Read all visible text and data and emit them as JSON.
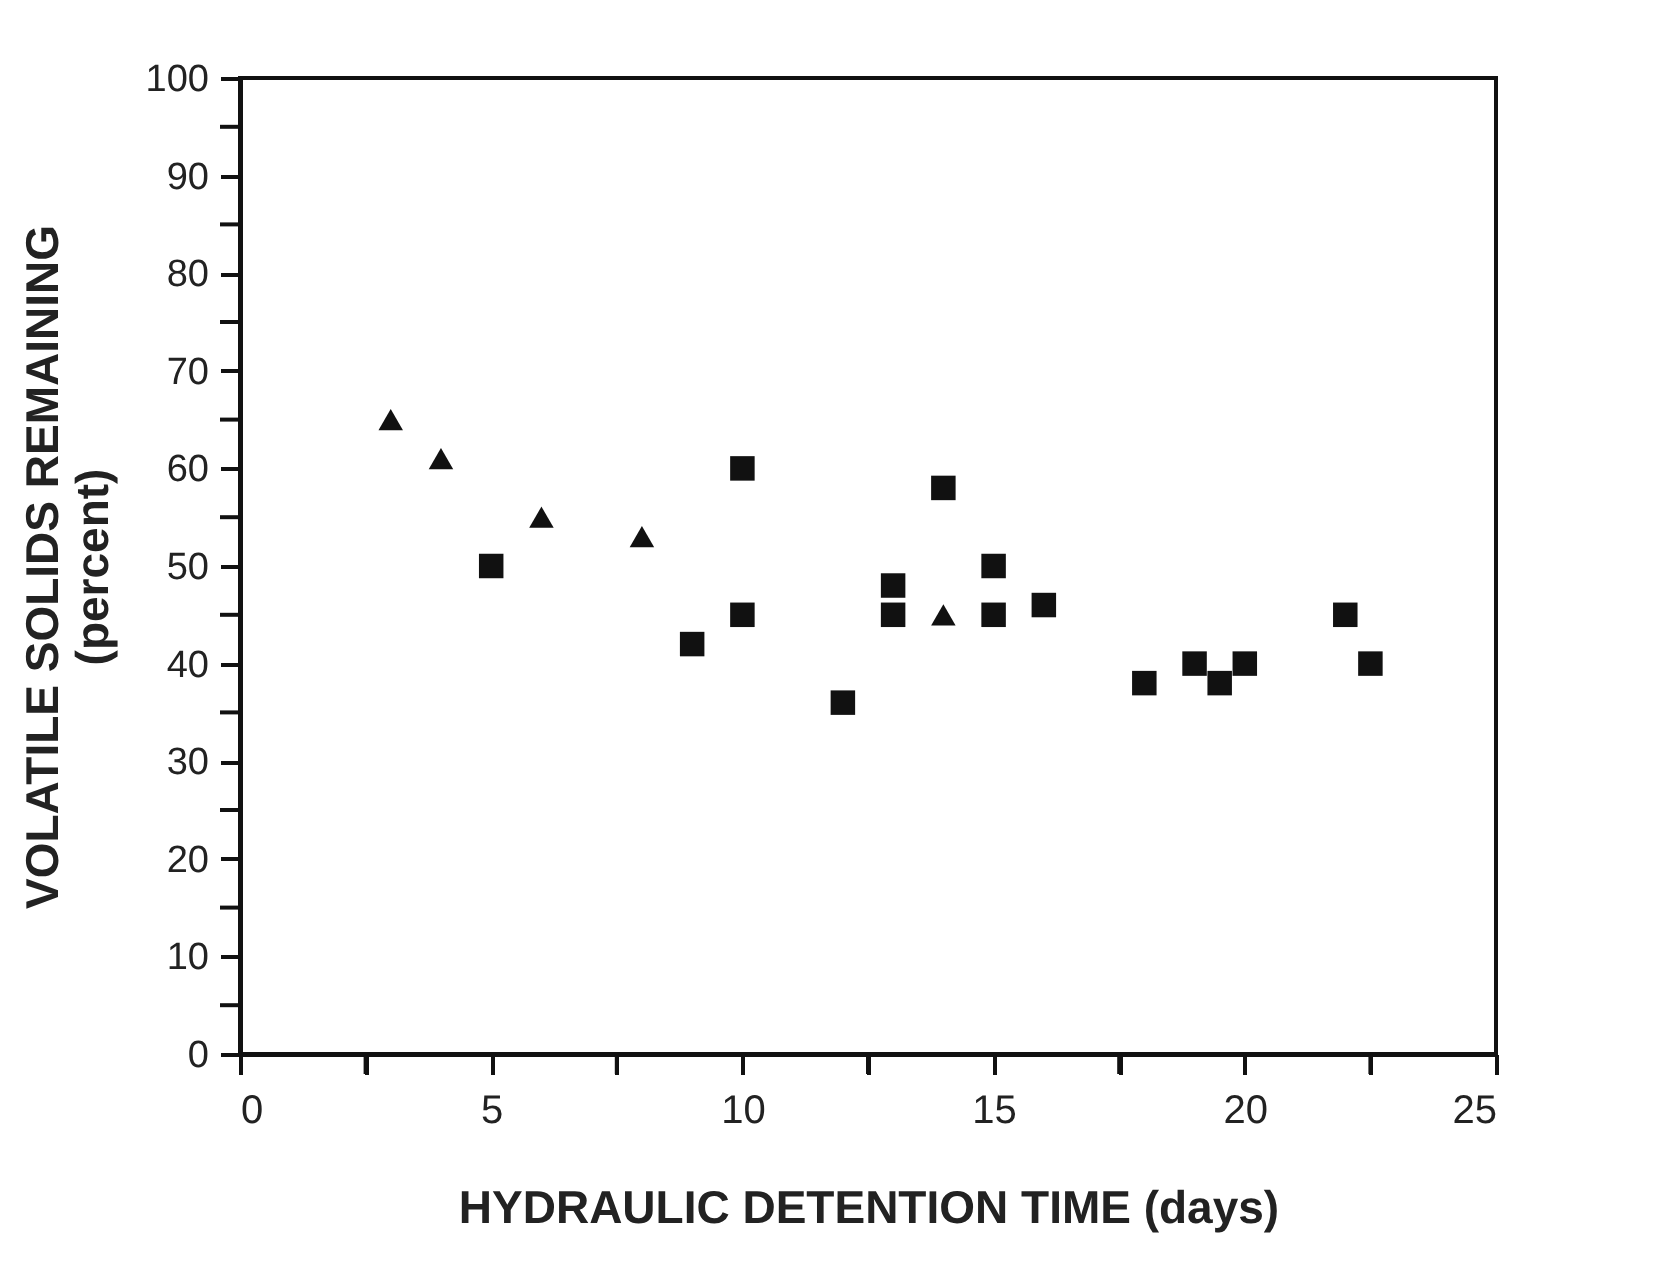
{
  "chart_data": {
    "type": "scatter",
    "xlabel": "HYDRAULIC DETENTION TIME (days)",
    "ylabel": "VOLATILE SOLIDS REMAINING\n(percent)",
    "series": [
      {
        "color": "#111111",
        "marker": "triangle",
        "x": [
          3,
          4,
          6,
          8,
          14
        ],
        "values": [
          65,
          61,
          55,
          53,
          45
        ]
      },
      {
        "color": "#111111",
        "marker": "square",
        "x": [
          5,
          9,
          10,
          10,
          12,
          13,
          13,
          14,
          15,
          15,
          16,
          18,
          19,
          19.5,
          20,
          22,
          22.5
        ],
        "values": [
          50,
          42,
          60,
          45,
          36,
          48,
          45,
          58,
          50,
          45,
          46,
          38,
          40,
          38,
          40,
          45,
          40
        ]
      }
    ],
    "xlim": [
      0,
      25
    ],
    "xticks": [
      0,
      {
        "value": 2.5,
        "label": null
      },
      5,
      {
        "value": 7.5,
        "label": null
      },
      10,
      {
        "value": 12.5,
        "label": null
      },
      15,
      {
        "value": 17.5,
        "label": null
      },
      20,
      {
        "value": 22.5,
        "label": null
      },
      25
    ],
    "ylim": [
      0,
      100
    ],
    "yticks": [
      0,
      {
        "value": 5,
        "label": null
      },
      10,
      {
        "value": 15,
        "label": null
      },
      20,
      {
        "value": 25,
        "label": null
      },
      30,
      {
        "value": 35,
        "label": null
      },
      40,
      {
        "value": 45,
        "label": null
      },
      50,
      {
        "value": 55,
        "label": null
      },
      60,
      {
        "value": 65,
        "label": null
      },
      70,
      {
        "value": 75,
        "label": null
      },
      80,
      {
        "value": 85,
        "label": null
      },
      90,
      {
        "value": 95,
        "label": null
      },
      100
    ],
    "grid": false
  }
}
